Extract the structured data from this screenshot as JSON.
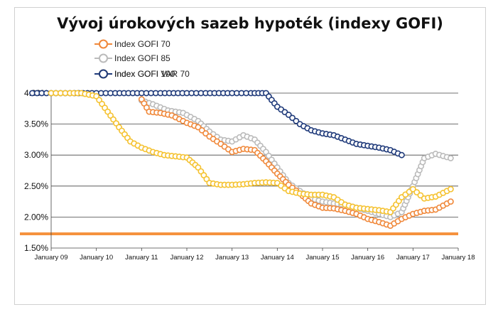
{
  "chart_data": {
    "type": "line",
    "title": "Vývoj úrokových sazeb hypoték (indexy GOFI)",
    "xlabel": "",
    "ylabel": "",
    "x_tick_labels": [
      "January 09",
      "January 10",
      "January 11",
      "January 12",
      "January 13",
      "January 14",
      "January 15",
      "January 16",
      "January 17",
      "January 18"
    ],
    "y_tick_labels": [
      "4.00%",
      "3.50%",
      "3.00%",
      "2.50%",
      "2.00%",
      "1.50%"
    ],
    "ylim": [
      1.5,
      4.0
    ],
    "xlim": [
      "2009-01",
      "2018-01"
    ],
    "grid": true,
    "legend_position": "top-left",
    "reference_line": {
      "y": 1.73,
      "color": "#f5923e"
    },
    "series": [
      {
        "name": "Index GOFI 70",
        "color": "#f0883a",
        "points": [
          [
            "2011-01",
            3.9
          ],
          [
            "2011-03",
            3.7
          ],
          [
            "2011-06",
            3.68
          ],
          [
            "2011-09",
            3.64
          ],
          [
            "2012-01",
            3.52
          ],
          [
            "2012-04",
            3.45
          ],
          [
            "2012-07",
            3.3
          ],
          [
            "2012-10",
            3.18
          ],
          [
            "2013-01",
            3.05
          ],
          [
            "2013-04",
            3.1
          ],
          [
            "2013-07",
            3.08
          ],
          [
            "2013-10",
            2.9
          ],
          [
            "2014-01",
            2.7
          ],
          [
            "2014-04",
            2.52
          ],
          [
            "2014-07",
            2.38
          ],
          [
            "2014-10",
            2.22
          ],
          [
            "2015-01",
            2.15
          ],
          [
            "2015-04",
            2.14
          ],
          [
            "2015-07",
            2.1
          ],
          [
            "2015-10",
            2.05
          ],
          [
            "2016-01",
            1.97
          ],
          [
            "2016-04",
            1.92
          ],
          [
            "2016-07",
            1.86
          ],
          [
            "2016-10",
            1.97
          ],
          [
            "2017-01",
            2.05
          ],
          [
            "2017-04",
            2.1
          ],
          [
            "2017-07",
            2.12
          ],
          [
            "2017-11",
            2.25
          ]
        ]
      },
      {
        "name": "Index GOFI 85",
        "color": "#bbbbbb",
        "points": [
          [
            "2011-01",
            3.88
          ],
          [
            "2011-04",
            3.82
          ],
          [
            "2011-08",
            3.72
          ],
          [
            "2011-12",
            3.68
          ],
          [
            "2012-04",
            3.55
          ],
          [
            "2012-07",
            3.38
          ],
          [
            "2012-10",
            3.25
          ],
          [
            "2013-01",
            3.22
          ],
          [
            "2013-04",
            3.32
          ],
          [
            "2013-07",
            3.25
          ],
          [
            "2013-10",
            3.05
          ],
          [
            "2014-01",
            2.8
          ],
          [
            "2014-04",
            2.55
          ],
          [
            "2014-07",
            2.42
          ],
          [
            "2014-10",
            2.3
          ],
          [
            "2015-01",
            2.25
          ],
          [
            "2015-04",
            2.22
          ],
          [
            "2015-07",
            2.2
          ],
          [
            "2015-10",
            2.15
          ],
          [
            "2016-01",
            2.1
          ],
          [
            "2016-04",
            2.05
          ],
          [
            "2016-07",
            2.0
          ],
          [
            "2016-10",
            2.08
          ],
          [
            "2017-01",
            2.5
          ],
          [
            "2017-04",
            2.95
          ],
          [
            "2017-07",
            3.02
          ],
          [
            "2017-11",
            2.95
          ]
        ]
      },
      {
        "name": "Index GOFI 100",
        "color": "#f5c230",
        "points": [
          [
            "2009-01",
            4.0
          ],
          [
            "2009-06",
            4.0
          ],
          [
            "2009-09",
            4.0
          ],
          [
            "2010-01",
            3.95
          ],
          [
            "2010-04",
            3.7
          ],
          [
            "2010-07",
            3.45
          ],
          [
            "2010-10",
            3.22
          ],
          [
            "2011-01",
            3.12
          ],
          [
            "2011-04",
            3.05
          ],
          [
            "2011-07",
            3.0
          ],
          [
            "2011-10",
            2.98
          ],
          [
            "2012-01",
            2.96
          ],
          [
            "2012-04",
            2.8
          ],
          [
            "2012-07",
            2.55
          ],
          [
            "2012-10",
            2.52
          ],
          [
            "2013-01",
            2.52
          ],
          [
            "2013-04",
            2.53
          ],
          [
            "2013-07",
            2.55
          ],
          [
            "2013-10",
            2.56
          ],
          [
            "2014-01",
            2.55
          ],
          [
            "2014-04",
            2.42
          ],
          [
            "2014-07",
            2.38
          ],
          [
            "2014-10",
            2.36
          ],
          [
            "2015-01",
            2.36
          ],
          [
            "2015-04",
            2.32
          ],
          [
            "2015-07",
            2.2
          ],
          [
            "2015-10",
            2.15
          ],
          [
            "2016-01",
            2.13
          ],
          [
            "2016-04",
            2.11
          ],
          [
            "2016-07",
            2.08
          ],
          [
            "2016-10",
            2.32
          ],
          [
            "2017-01",
            2.45
          ],
          [
            "2017-04",
            2.3
          ],
          [
            "2017-07",
            2.33
          ],
          [
            "2017-11",
            2.45
          ]
        ]
      },
      {
        "name": "Index GOFI VAR 70",
        "color": "#1f3a7a",
        "points": [
          [
            "2008-08",
            4.0
          ],
          [
            "2009-01",
            4.0
          ],
          [
            "2009-06",
            4.0
          ],
          [
            "2010-01",
            4.0
          ],
          [
            "2010-06",
            4.0
          ],
          [
            "2011-01",
            4.0
          ],
          [
            "2011-06",
            4.0
          ],
          [
            "2012-01",
            4.0
          ],
          [
            "2012-06",
            4.0
          ],
          [
            "2013-01",
            4.0
          ],
          [
            "2013-06",
            4.0
          ],
          [
            "2013-10",
            4.0
          ],
          [
            "2014-01",
            3.78
          ],
          [
            "2014-04",
            3.65
          ],
          [
            "2014-07",
            3.5
          ],
          [
            "2014-10",
            3.4
          ],
          [
            "2015-01",
            3.35
          ],
          [
            "2015-04",
            3.32
          ],
          [
            "2015-07",
            3.25
          ],
          [
            "2015-10",
            3.18
          ],
          [
            "2016-01",
            3.15
          ],
          [
            "2016-04",
            3.12
          ],
          [
            "2016-07",
            3.08
          ],
          [
            "2016-10",
            3.0
          ]
        ]
      }
    ]
  }
}
